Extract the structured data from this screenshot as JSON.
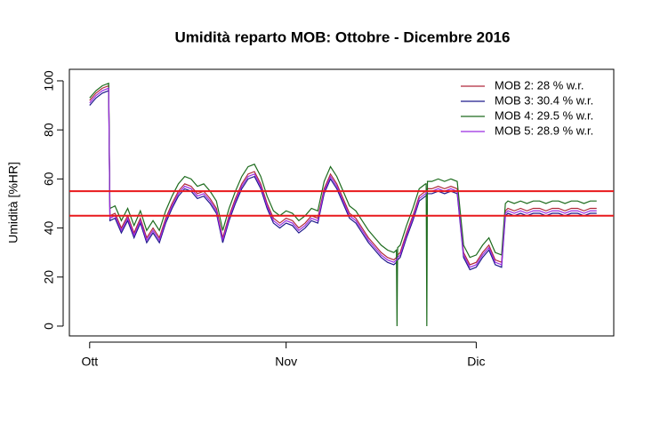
{
  "chart_data": {
    "type": "line",
    "title": "Umidità reparto MOB: Ottobre - Dicembre 2016",
    "y_label": "Umidità [%HR]",
    "x": [
      0,
      1,
      2,
      3,
      3.2,
      4,
      5,
      6,
      7,
      8,
      9,
      10,
      11,
      12,
      13,
      14,
      15,
      16,
      17,
      18,
      19,
      20,
      21,
      22,
      23,
      24,
      25,
      26,
      27,
      28,
      29,
      30,
      31,
      32,
      33,
      34,
      35,
      36,
      37,
      38,
      39,
      40,
      41,
      42,
      43,
      44,
      45,
      46,
      47,
      48,
      48.4,
      48.5,
      48.6,
      49,
      50,
      51,
      52,
      53,
      53.1,
      53.2,
      53.3,
      54,
      55,
      56,
      57,
      58,
      59,
      60,
      61,
      62,
      63,
      64,
      65,
      65.6,
      66,
      67,
      68,
      69,
      70,
      71,
      72,
      73,
      74,
      75,
      76,
      77,
      78,
      79,
      80
    ],
    "series": [
      {
        "name": "MOB 2:  28 % w.r.",
        "color": "#b0283c",
        "values": [
          92,
          95,
          97,
          98,
          45,
          46,
          40,
          45,
          38,
          44,
          36,
          40,
          36,
          44,
          50,
          55,
          58,
          57,
          54,
          55,
          52,
          48,
          36,
          45,
          52,
          58,
          62,
          63,
          58,
          50,
          44,
          42,
          44,
          43,
          40,
          42,
          45,
          44,
          56,
          62,
          58,
          52,
          46,
          44,
          40,
          36,
          33,
          30,
          28,
          27,
          28,
          28,
          29,
          30,
          38,
          45,
          53,
          55,
          55,
          56,
          56,
          56,
          57,
          56,
          57,
          56,
          30,
          25,
          26,
          30,
          33,
          27,
          26,
          47,
          48,
          47,
          48,
          47,
          48,
          48,
          47,
          48,
          48,
          47,
          48,
          48,
          47,
          48,
          48
        ]
      },
      {
        "name": "MOB 3:  30.4 % w.r.",
        "color": "#1f1a8c",
        "values": [
          90,
          93,
          95,
          96,
          43,
          44,
          38,
          43,
          36,
          42,
          34,
          38,
          34,
          42,
          48,
          53,
          56,
          55,
          52,
          53,
          50,
          46,
          34,
          43,
          50,
          56,
          60,
          61,
          56,
          48,
          42,
          40,
          42,
          41,
          38,
          40,
          43,
          42,
          54,
          60,
          56,
          50,
          44,
          42,
          38,
          34,
          31,
          28,
          26,
          25,
          26,
          26,
          27,
          28,
          36,
          43,
          51,
          53,
          53,
          54,
          54,
          54,
          55,
          54,
          55,
          54,
          28,
          23,
          24,
          28,
          31,
          25,
          24,
          45,
          46,
          45,
          46,
          45,
          46,
          46,
          45,
          46,
          46,
          45,
          46,
          46,
          45,
          46,
          46
        ]
      },
      {
        "name": "MOB 4:  29.5 % w.r.",
        "color": "#1d6b1d",
        "values": [
          93,
          96,
          98,
          99,
          48,
          49,
          43,
          48,
          41,
          47,
          39,
          43,
          39,
          47,
          53,
          58,
          61,
          60,
          57,
          58,
          55,
          51,
          39,
          48,
          55,
          61,
          65,
          66,
          61,
          53,
          47,
          45,
          47,
          46,
          43,
          45,
          48,
          47,
          59,
          65,
          61,
          55,
          49,
          47,
          43,
          39,
          36,
          33,
          31,
          30,
          31,
          0,
          32,
          33,
          41,
          48,
          56,
          58,
          58,
          0,
          59,
          59,
          60,
          59,
          60,
          59,
          33,
          28,
          29,
          33,
          36,
          30,
          29,
          50,
          51,
          50,
          51,
          50,
          51,
          51,
          50,
          51,
          51,
          50,
          51,
          51,
          50,
          51,
          51
        ]
      },
      {
        "name": "MOB 5:  28.9 % w.r.",
        "color": "#9a2be0",
        "values": [
          91,
          94,
          96,
          97,
          44,
          45,
          39,
          44,
          37,
          43,
          35,
          39,
          35,
          43,
          49,
          54,
          57,
          56,
          53,
          54,
          51,
          47,
          35,
          44,
          51,
          57,
          61,
          62,
          57,
          49,
          43,
          41,
          43,
          42,
          39,
          41,
          44,
          43,
          55,
          61,
          57,
          51,
          45,
          43,
          39,
          35,
          32,
          29,
          27,
          26,
          27,
          27,
          28,
          29,
          37,
          44,
          52,
          54,
          54,
          55,
          55,
          55,
          56,
          55,
          56,
          55,
          29,
          24,
          25,
          29,
          32,
          26,
          25,
          46,
          47,
          46,
          47,
          46,
          47,
          47,
          46,
          47,
          47,
          46,
          47,
          47,
          46,
          47,
          47
        ]
      }
    ],
    "reference_lines": [
      45,
      55
    ],
    "reference_color": "#e8191c",
    "xlim": [
      -3.2,
      82.7
    ],
    "xticks": [
      {
        "value": 0,
        "label": "Ott"
      },
      {
        "value": 31,
        "label": "Nov"
      },
      {
        "value": 61,
        "label": "Dic"
      }
    ],
    "ylim": [
      -4,
      104.7
    ],
    "yticks": [
      0,
      20,
      40,
      60,
      80,
      100
    ],
    "grid": false,
    "legend": "top-right"
  }
}
